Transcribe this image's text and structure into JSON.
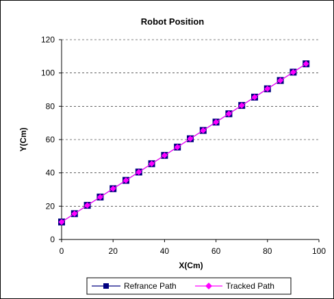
{
  "chart_data": {
    "type": "line",
    "title": "Robot Position",
    "xlabel": "X(Cm)",
    "ylabel": "Y(Cm)",
    "xlim": [
      0,
      100
    ],
    "ylim": [
      0,
      120
    ],
    "xticks": [
      0,
      20,
      40,
      60,
      80,
      100
    ],
    "yticks": [
      0,
      20,
      40,
      60,
      80,
      100,
      120
    ],
    "grid": "horizontal dashed",
    "legend_position": "bottom",
    "series": [
      {
        "name": "Refrance Path",
        "color": "#000080",
        "marker": "square",
        "x": [
          0,
          5,
          10,
          15,
          20,
          25,
          30,
          35,
          40,
          45,
          50,
          55,
          60,
          65,
          70,
          75,
          80,
          85,
          90,
          95
        ],
        "y": [
          10.5,
          15.5,
          20.5,
          25.5,
          30.5,
          35.5,
          40.5,
          45.5,
          50.5,
          55.5,
          60.5,
          65.5,
          70.5,
          75.5,
          80.5,
          85.5,
          90.5,
          95.5,
          100.5,
          105.5
        ]
      },
      {
        "name": "Tracked Path",
        "color": "#ff00ff",
        "marker": "diamond",
        "x": [
          0,
          5,
          10,
          15,
          20,
          25,
          30,
          35,
          40,
          45,
          50,
          55,
          60,
          65,
          70,
          75,
          80,
          85,
          90,
          95
        ],
        "y": [
          10.5,
          15.5,
          20.5,
          25.5,
          30.5,
          35.5,
          40.5,
          45.5,
          50.5,
          55.5,
          60.5,
          65.5,
          70.5,
          75.5,
          80.5,
          85.5,
          90.5,
          95.5,
          100.5,
          105.5
        ]
      }
    ]
  }
}
